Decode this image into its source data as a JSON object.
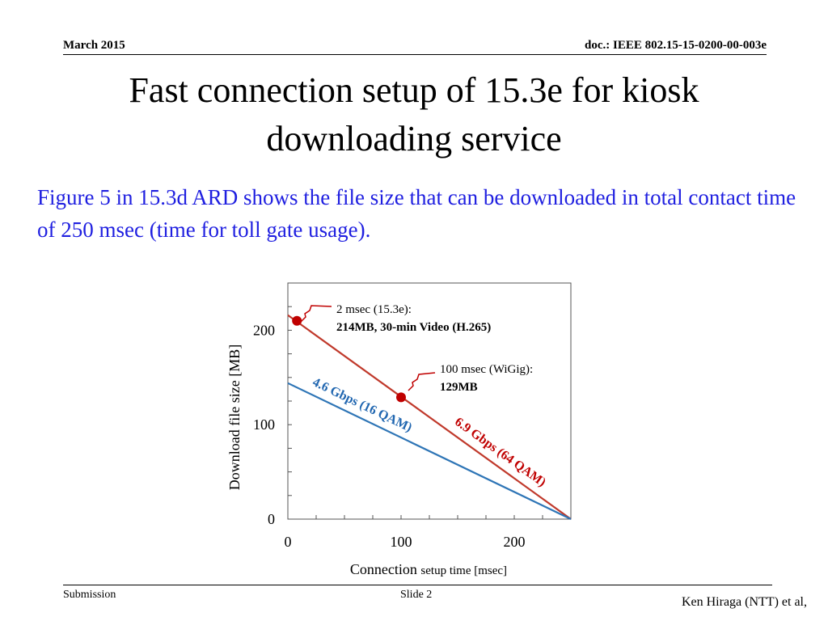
{
  "header": {
    "date": "March 2015",
    "doc": "doc.: IEEE 802.15-15-0200-00-003e"
  },
  "title": "Fast connection setup of 15.3e for kiosk downloading service",
  "intro": "Figure 5 in 15.3d ARD shows the file size that can be downloaded in total contact time of 250 msec (time for toll gate usage).",
  "chart_data": {
    "type": "line",
    "xlabel": "Connection setup time [msec]",
    "ylabel": "Download file size [MB]",
    "xlim": [
      0,
      250
    ],
    "ylim": [
      0,
      250
    ],
    "xticks": [
      "0",
      "100",
      "200"
    ],
    "yticks": [
      "0",
      "100",
      "200"
    ],
    "grid": false,
    "series": [
      {
        "name": "6.9 Gbps (64 QAM)",
        "color": "#c0392b",
        "x": [
          0,
          250
        ],
        "y": [
          216,
          0
        ]
      },
      {
        "name": "4.6 Gbps (16 QAM)",
        "color": "#2e75b6",
        "x": [
          0,
          250
        ],
        "y": [
          144,
          0
        ]
      }
    ],
    "points": [
      {
        "x": 8,
        "y": 210,
        "color": "#c00000",
        "line1": "2 msec (15.3e):",
        "line2": "214MB, 30-min Video (H.265)"
      },
      {
        "x": 100,
        "y": 129,
        "color": "#c00000",
        "line1": "100 msec (WiGig):",
        "line2": "129MB"
      }
    ]
  },
  "footer": {
    "left": "Submission",
    "center": "Slide 2",
    "right": "Ken Hiraga (NTT) et al,"
  }
}
